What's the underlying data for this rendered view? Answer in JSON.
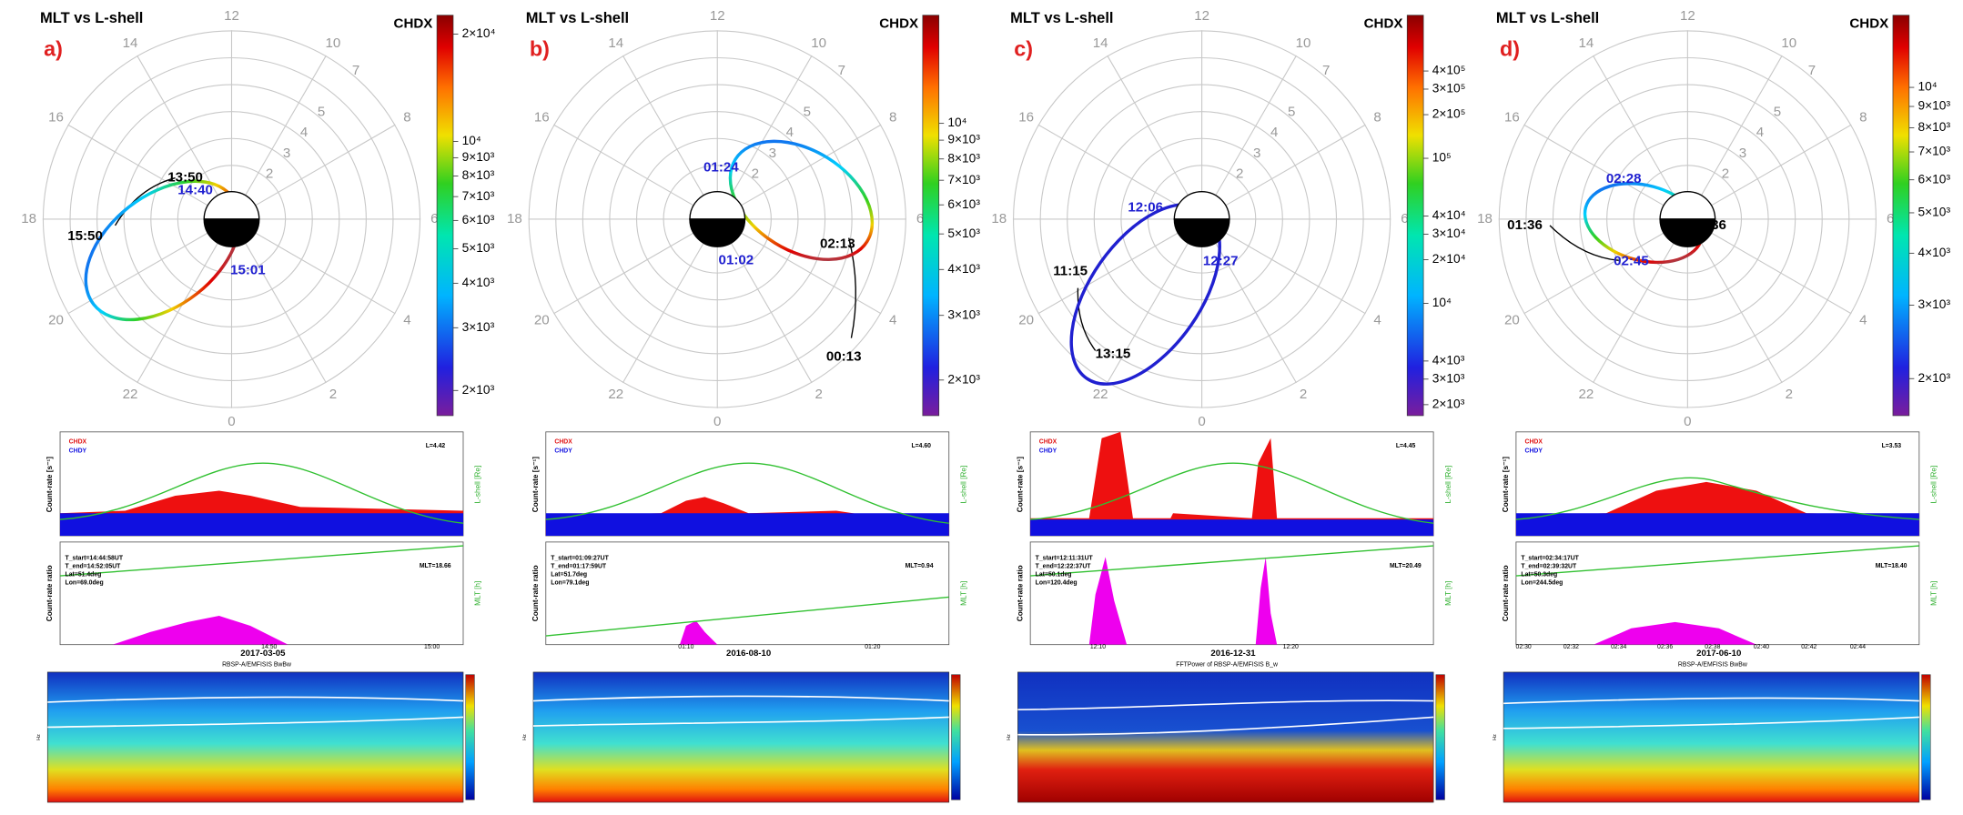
{
  "polar_axes": {
    "mlt_labels": [
      "12",
      "14",
      "16",
      "18",
      "20",
      "22",
      "0",
      "2",
      "4",
      "6",
      "8",
      "10"
    ],
    "lshell_labels": [
      2,
      3,
      4,
      5,
      7
    ]
  },
  "labels": {
    "count_ylabel": "Count-rate [s⁻¹]",
    "lshell_ylabel": "L-shell [Re]",
    "ratio_ylabel": "Count-rate ratio",
    "mlt_ylabel": "MLT [h]",
    "legend": [
      "CHDX",
      "CHDY"
    ],
    "freq_ylabel": "Hz"
  },
  "panels": [
    {
      "title": "MLT vs L-shell",
      "letter": "a)",
      "colorbar": {
        "label": "CHDX",
        "lim": [
          1700,
          22600
        ],
        "ticks": [
          {
            "value": 20000,
            "label": "2×10⁴"
          },
          {
            "value": 10000,
            "label": "10⁴"
          },
          {
            "value": 9000,
            "label": "9×10³"
          },
          {
            "value": 8000,
            "label": "8×10³"
          },
          {
            "value": 7000,
            "label": "7×10³"
          },
          {
            "value": 6000,
            "label": "6×10³"
          },
          {
            "value": 5000,
            "label": "5×10³"
          },
          {
            "value": 4000,
            "label": "4×10³"
          },
          {
            "value": 3000,
            "label": "3×10³"
          },
          {
            "value": 2000,
            "label": "2×10³"
          }
        ]
      },
      "orbit_labels": [
        {
          "text": "13:50",
          "color": "#000000"
        },
        {
          "text": "14:40",
          "color": "#1f1fd0"
        },
        {
          "text": "15:50",
          "color": "#000000"
        },
        {
          "text": "15:01",
          "color": "#1f1fd0"
        }
      ],
      "l_text": "L=4.42",
      "mlt_text": "MLT=18.66",
      "info": [
        "T_start=14:44:58UT",
        "T_end=14:52:05UT",
        "Lat=51.4deg",
        "Lon=69.0deg"
      ],
      "time_ticks": [
        "14:50",
        "15:00"
      ],
      "date": "2017-03-05",
      "spectrogram_title": "RBSP-A/EMFISIS BwBw"
    },
    {
      "title": "MLT vs L-shell",
      "letter": "b)",
      "colorbar": {
        "label": "CHDX",
        "lim": [
          1600,
          19700
        ],
        "ticks": [
          {
            "value": 10000,
            "label": "10⁴"
          },
          {
            "value": 9000,
            "label": "9×10³"
          },
          {
            "value": 8000,
            "label": "8×10³"
          },
          {
            "value": 7000,
            "label": "7×10³"
          },
          {
            "value": 6000,
            "label": "6×10³"
          },
          {
            "value": 5000,
            "label": "5×10³"
          },
          {
            "value": 4000,
            "label": "4×10³"
          },
          {
            "value": 3000,
            "label": "3×10³"
          },
          {
            "value": 2000,
            "label": "2×10³"
          }
        ]
      },
      "orbit_labels": [
        {
          "text": "01:24",
          "color": "#1f1fd0"
        },
        {
          "text": "02:13",
          "color": "#000000"
        },
        {
          "text": "01:02",
          "color": "#1f1fd0"
        },
        {
          "text": "00:13",
          "color": "#000000"
        }
      ],
      "l_text": "L=4.60",
      "mlt_text": "MLT=0.94",
      "info": [
        "T_start=01:09:27UT",
        "T_end=01:17:59UT",
        "Lat=51.7deg",
        "Lon=79.1deg"
      ],
      "time_ticks": [
        "01:10",
        "01:20"
      ],
      "date": "2016-08-10"
    },
    {
      "title": "MLT vs L-shell",
      "letter": "c)",
      "colorbar": {
        "label": "CHDX",
        "lim": [
          1680,
          970000
        ],
        "ticks": [
          {
            "value": 400000,
            "label": "4×10⁵"
          },
          {
            "value": 300000,
            "label": "3×10⁵"
          },
          {
            "value": 200000,
            "label": "2×10⁵"
          },
          {
            "value": 100000,
            "label": "10⁵"
          },
          {
            "value": 40000,
            "label": "4×10⁴"
          },
          {
            "value": 30000,
            "label": "3×10⁴"
          },
          {
            "value": 20000,
            "label": "2×10⁴"
          },
          {
            "value": 10000,
            "label": "10⁴"
          },
          {
            "value": 4000,
            "label": "4×10³"
          },
          {
            "value": 3000,
            "label": "3×10³"
          },
          {
            "value": 2000,
            "label": "2×10³"
          }
        ]
      },
      "orbit_labels": [
        {
          "text": "12:06",
          "color": "#1f1fd0"
        },
        {
          "text": "11:15",
          "color": "#000000"
        },
        {
          "text": "12:27",
          "color": "#1f1fd0"
        },
        {
          "text": "13:15",
          "color": "#000000"
        }
      ],
      "l_text": "L=4.45",
      "mlt_text": "MLT=20.49",
      "info": [
        "T_start=12:11:31UT",
        "T_end=12:22:37UT",
        "Lat=50.1deg",
        "Lon=120.4deg"
      ],
      "time_ticks": [
        "12:10",
        "12:20"
      ],
      "date": "2016-12-31",
      "spectrogram_title": "FFTPower of RBSP-A/EMFISIS B_w"
    },
    {
      "title": "MLT vs L-shell",
      "letter": "d)",
      "colorbar": {
        "label": "CHDX",
        "lim": [
          1630,
          14900
        ],
        "ticks": [
          {
            "value": 10000,
            "label": "10⁴"
          },
          {
            "value": 9000,
            "label": "9×10³"
          },
          {
            "value": 8000,
            "label": "8×10³"
          },
          {
            "value": 7000,
            "label": "7×10³"
          },
          {
            "value": 6000,
            "label": "6×10³"
          },
          {
            "value": 5000,
            "label": "5×10³"
          },
          {
            "value": 4000,
            "label": "4×10³"
          },
          {
            "value": 3000,
            "label": "3×10³"
          },
          {
            "value": 2000,
            "label": "2×10³"
          }
        ]
      },
      "orbit_labels": [
        {
          "text": "02:28",
          "color": "#1f1fd0"
        },
        {
          "text": "01:36",
          "color": "#000000"
        },
        {
          "text": ":36",
          "color": "#000000"
        },
        {
          "text": "02:45",
          "color": "#1f1fd0"
        }
      ],
      "l_text": "L=3.53",
      "mlt_text": "MLT=18.40",
      "info": [
        "T_start=02:34:17UT",
        "T_end=02:39:32UT",
        "Lat=50.3deg",
        "Lon=244.5deg"
      ],
      "time_ticks": [
        "02:30",
        "02:32",
        "02:34",
        "02:36",
        "02:38",
        "02:40",
        "02:42",
        "02:44"
      ],
      "date": "2017-06-10",
      "spectrogram_title": "RBSP-A/EMFISIS BwBw"
    }
  ]
}
